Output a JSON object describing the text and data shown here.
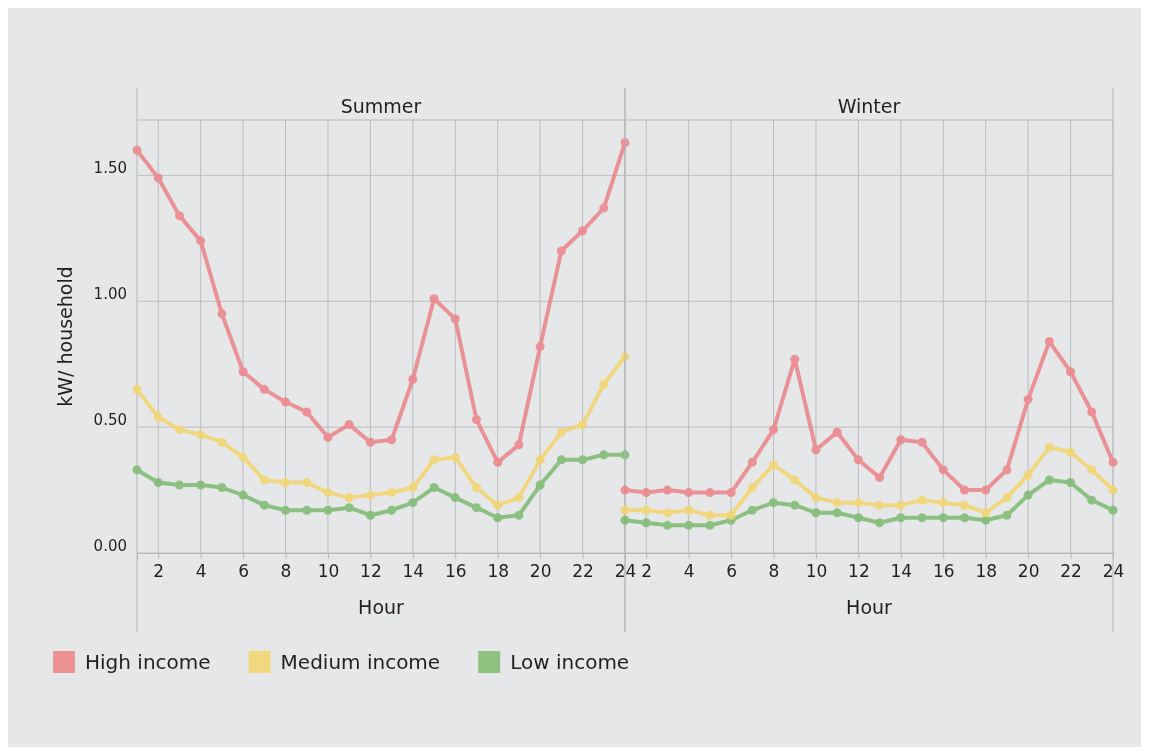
{
  "chart_data": [
    {
      "type": "line",
      "title": "Summer",
      "xlabel": "Hour",
      "ylabel": "kW/ household",
      "x": [
        1,
        2,
        3,
        4,
        5,
        6,
        7,
        8,
        9,
        10,
        11,
        12,
        13,
        14,
        15,
        16,
        17,
        18,
        19,
        20,
        21,
        22,
        23,
        24
      ],
      "series": [
        {
          "name": "High income",
          "color": "#ec8286",
          "values": [
            1.6,
            1.49,
            1.34,
            1.24,
            0.95,
            0.72,
            0.65,
            0.6,
            0.56,
            0.46,
            0.51,
            0.44,
            0.45,
            0.69,
            1.01,
            0.93,
            0.53,
            0.36,
            0.43,
            0.82,
            1.2,
            1.28,
            1.37,
            1.63
          ]
        },
        {
          "name": "Medium income",
          "color": "#f4d46c",
          "values": [
            0.65,
            0.54,
            0.49,
            0.47,
            0.44,
            0.38,
            0.29,
            0.28,
            0.28,
            0.24,
            0.22,
            0.23,
            0.24,
            0.26,
            0.37,
            0.38,
            0.26,
            0.19,
            0.22,
            0.37,
            0.48,
            0.51,
            0.67,
            0.78
          ]
        },
        {
          "name": "Low income",
          "color": "#7cbb6e",
          "values": [
            0.33,
            0.28,
            0.27,
            0.27,
            0.26,
            0.23,
            0.19,
            0.17,
            0.17,
            0.17,
            0.18,
            0.15,
            0.17,
            0.2,
            0.26,
            0.22,
            0.18,
            0.14,
            0.15,
            0.27,
            0.37,
            0.37,
            0.39,
            0.39
          ]
        }
      ],
      "xlim": [
        1,
        24
      ],
      "xticks": [
        2,
        4,
        6,
        8,
        10,
        12,
        14,
        16,
        18,
        20,
        22,
        24
      ],
      "ylim": [
        0,
        1.72
      ],
      "yticks": [
        {
          "value": 0,
          "label": "0.00"
        },
        {
          "value": 0.5,
          "label": "0.50"
        },
        {
          "value": 1,
          "label": "1.00"
        },
        {
          "value": 1.5,
          "label": "1.50"
        }
      ],
      "grid": true,
      "marker": "circle",
      "legend": "bottom"
    },
    {
      "type": "line",
      "title": "Winter",
      "xlabel": "Hour",
      "x": [
        1,
        2,
        3,
        4,
        5,
        6,
        7,
        8,
        9,
        10,
        11,
        12,
        13,
        14,
        15,
        16,
        17,
        18,
        19,
        20,
        21,
        22,
        23,
        24
      ],
      "series": [
        {
          "color": "#ec8286",
          "values": [
            0.25,
            0.24,
            0.25,
            0.24,
            0.24,
            0.24,
            0.36,
            0.49,
            0.77,
            0.41,
            0.48,
            0.37,
            0.3,
            0.45,
            0.44,
            0.33,
            0.25,
            0.25,
            0.33,
            0.61,
            0.84,
            0.72,
            0.56,
            0.36
          ]
        },
        {
          "color": "#f4d46c",
          "values": [
            0.17,
            0.17,
            0.16,
            0.17,
            0.15,
            0.15,
            0.26,
            0.35,
            0.29,
            0.22,
            0.2,
            0.2,
            0.19,
            0.19,
            0.21,
            0.2,
            0.19,
            0.16,
            0.22,
            0.31,
            0.42,
            0.4,
            0.33,
            0.25
          ]
        },
        {
          "color": "#7cbb6e",
          "values": [
            0.13,
            0.12,
            0.11,
            0.11,
            0.11,
            0.13,
            0.17,
            0.2,
            0.19,
            0.16,
            0.16,
            0.14,
            0.12,
            0.14,
            0.14,
            0.14,
            0.14,
            0.13,
            0.15,
            0.23,
            0.29,
            0.28,
            0.21,
            0.17
          ]
        }
      ],
      "xlim": [
        1,
        24
      ],
      "xticks": [
        2,
        4,
        6,
        8,
        10,
        12,
        14,
        16,
        18,
        20,
        22,
        24
      ],
      "ylim": [
        0,
        1.72
      ],
      "yticks": [
        {
          "value": 0,
          "label": null
        },
        {
          "value": 0.5,
          "label": null
        },
        {
          "value": 1,
          "label": null
        },
        {
          "value": 1.5,
          "label": null
        }
      ],
      "grid": true,
      "marker": "circle",
      "legend": false,
      "tick_labels": "x"
    }
  ]
}
